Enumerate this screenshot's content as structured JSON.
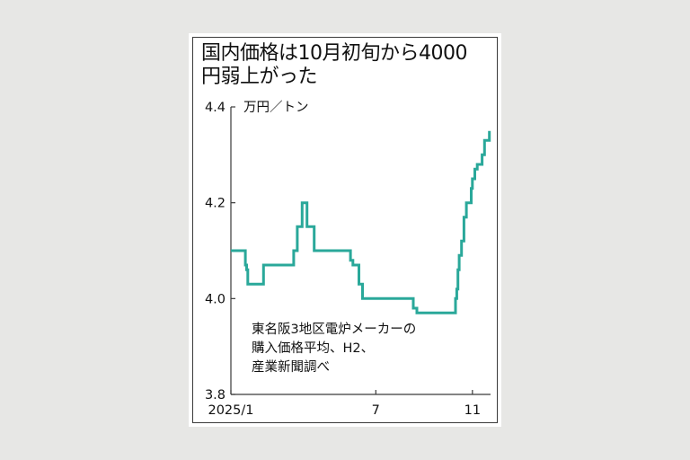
{
  "title_lines": [
    "国内価格は10月初旬から4000",
    "円弱上がった"
  ],
  "unit": "万円／トン",
  "note_lines": [
    "東名阪3地区電炉メーカーの",
    "購入価格平均、H2、",
    "産業新聞調べ"
  ],
  "colors": {
    "line": "#2aa89a",
    "frame": "#3a3a3a",
    "background": "#e7e7e5",
    "card": "#ffffff"
  },
  "chart_data": {
    "type": "line",
    "title": "国内価格は10月初旬から4000円弱上がった",
    "ylabel": "万円／トン",
    "xlabel": "",
    "ylim": [
      3.8,
      4.4
    ],
    "y_ticks": [
      3.8,
      4.0,
      4.2,
      4.4
    ],
    "y_tick_labels": [
      "3.8",
      "4.0",
      "4.2",
      "4.4"
    ],
    "x_ticks": [
      1,
      7,
      11
    ],
    "x_tick_labels": [
      "2025/1",
      "7",
      "11"
    ],
    "grid": false,
    "series": [
      {
        "step": true,
        "x": [
          1.0,
          1.6,
          1.65,
          1.7,
          1.9,
          2.35,
          3.6,
          3.75,
          3.95,
          4.05,
          4.15,
          4.45,
          4.55,
          4.75,
          5.95,
          6.05,
          6.1,
          6.3,
          6.45,
          6.55,
          6.65,
          8.55,
          8.7,
          8.85,
          10.3,
          10.35,
          10.4,
          10.45,
          10.55,
          10.65,
          10.75,
          10.85,
          10.95,
          11.0,
          11.1,
          11.2,
          11.4,
          11.5,
          11.6,
          11.7
        ],
        "y": [
          4.1,
          4.07,
          4.06,
          4.03,
          4.03,
          4.07,
          4.1,
          4.15,
          4.2,
          4.2,
          4.15,
          4.1,
          4.1,
          4.1,
          4.08,
          4.07,
          4.07,
          4.03,
          4.0,
          4.0,
          4.0,
          3.98,
          3.97,
          3.97,
          4.0,
          4.02,
          4.06,
          4.09,
          4.12,
          4.17,
          4.2,
          4.2,
          4.23,
          4.25,
          4.27,
          4.28,
          4.3,
          4.33,
          4.33,
          4.35
        ]
      }
    ]
  }
}
